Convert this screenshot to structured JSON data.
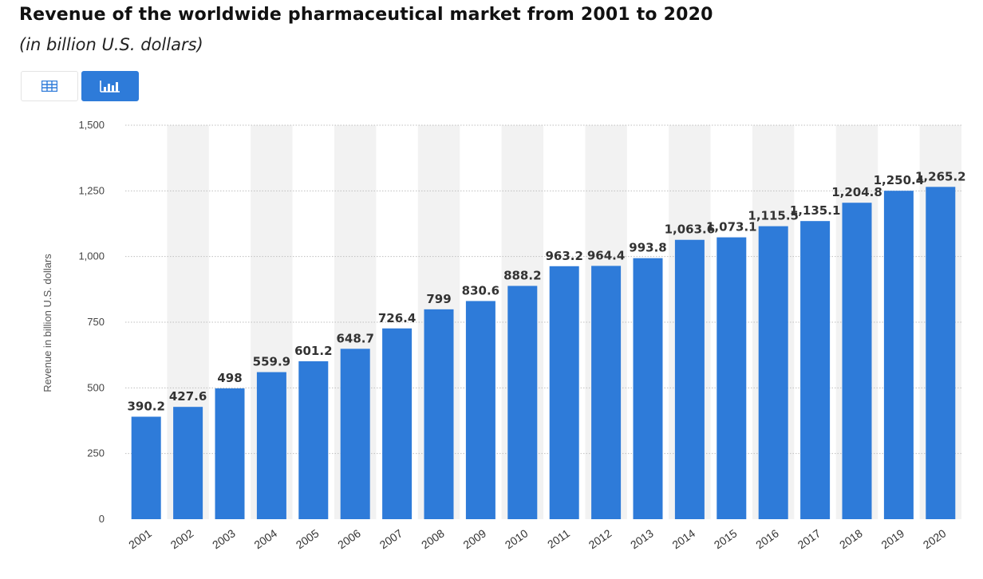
{
  "header": {
    "title": "Revenue of the worldwide pharmaceutical market from 2001 to 2020",
    "subtitle": "(in billion U.S. dollars)"
  },
  "toolbar": {
    "table_icon": "table-icon",
    "chart_icon": "bar-chart-icon",
    "active_color": "#2e7bd9"
  },
  "chart_data": {
    "type": "bar",
    "categories": [
      "2001",
      "2002",
      "2003",
      "2004",
      "2005",
      "2006",
      "2007",
      "2008",
      "2009",
      "2010",
      "2011",
      "2012",
      "2013",
      "2014",
      "2015",
      "2016",
      "2017",
      "2018",
      "2019",
      "2020"
    ],
    "values": [
      390.2,
      427.6,
      498,
      559.9,
      601.2,
      648.7,
      726.4,
      799,
      830.6,
      888.2,
      963.2,
      964.4,
      993.8,
      1063.6,
      1073.1,
      1115.5,
      1135.1,
      1204.8,
      1250.4,
      1265.2
    ],
    "data_labels": [
      "390.2",
      "427.6",
      "498",
      "559.9",
      "601.2",
      "648.7",
      "726.4",
      "799",
      "830.6",
      "888.2",
      "963.2",
      "964.4",
      "993.8",
      "1,063.6",
      "1,073.1",
      "1,115.5",
      "1,135.1",
      "1,204.8",
      "1,250.4",
      "1,265.2"
    ],
    "ylabel": "Revenue in billion U.S. dollars",
    "xlabel": "",
    "ylim": [
      0,
      1500
    ],
    "yticks": [
      0,
      250,
      500,
      750,
      1000,
      1250,
      1500
    ],
    "ytick_labels": [
      "0",
      "250",
      "500",
      "750",
      "1,000",
      "1,250",
      "1,500"
    ],
    "grid": true,
    "bar_color": "#2e7bd9",
    "alt_band_color": "#f2f2f2"
  }
}
